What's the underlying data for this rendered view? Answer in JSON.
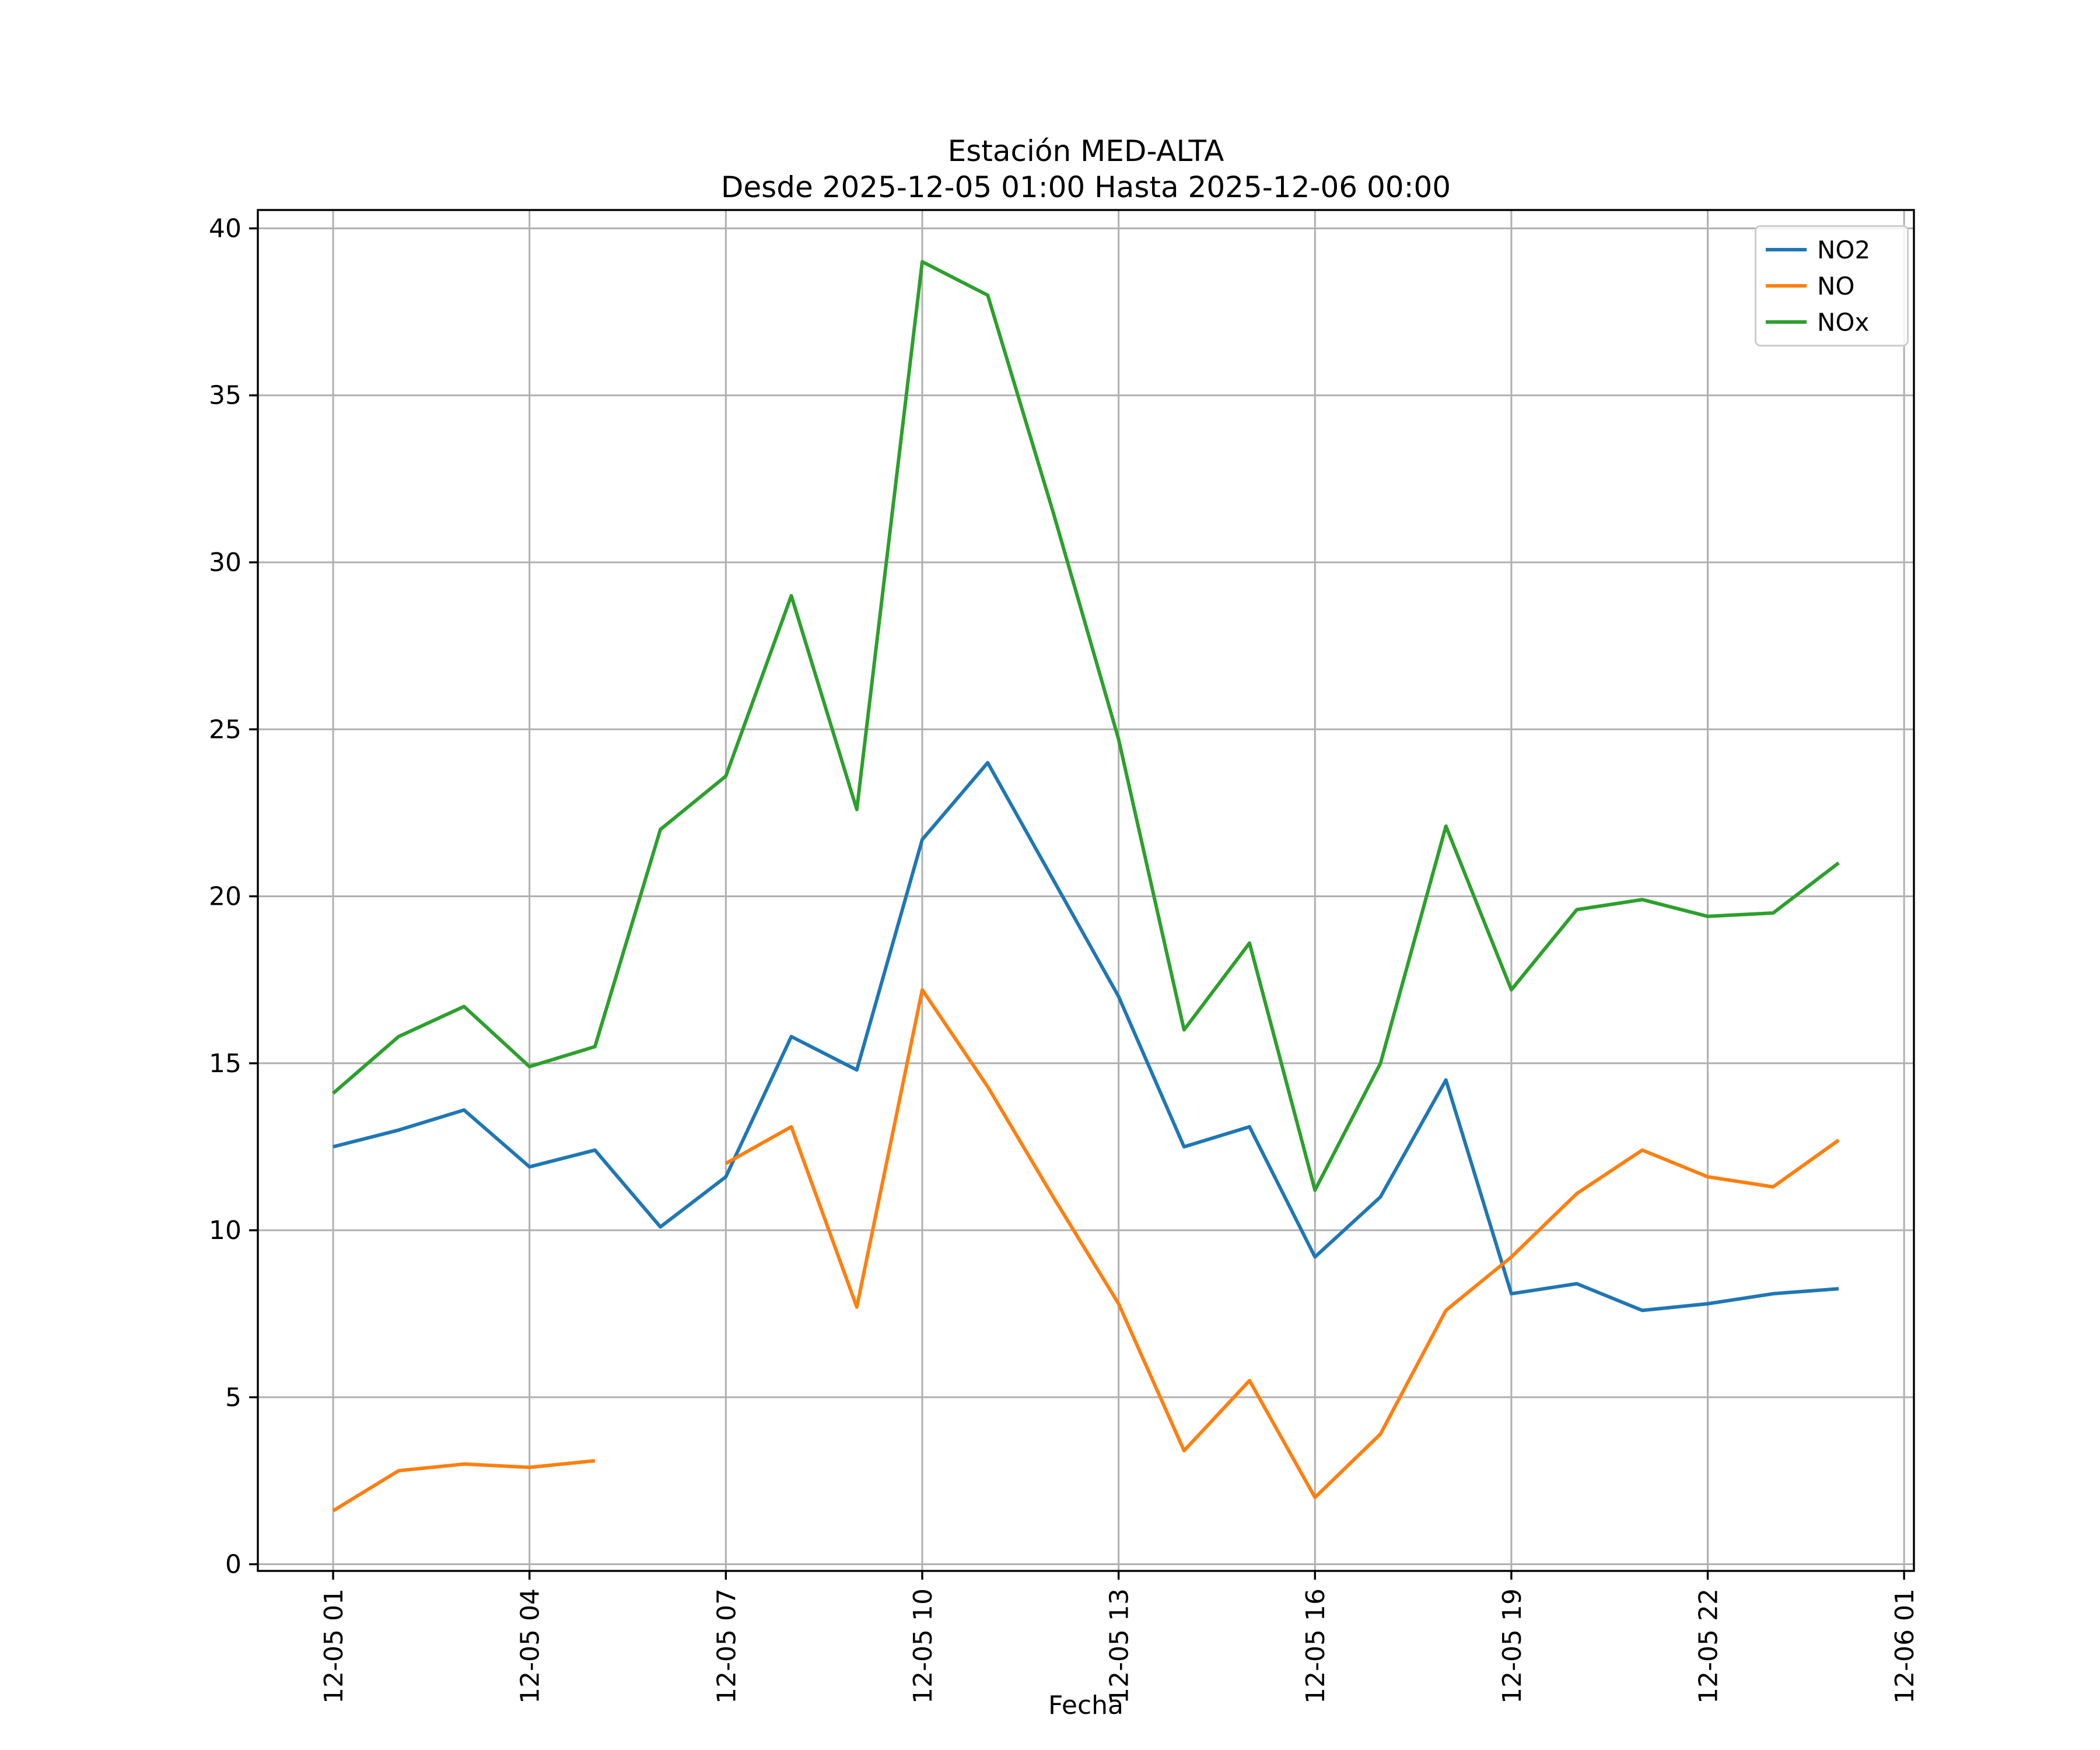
{
  "figure": {
    "background": "#ffffff"
  },
  "chart_data": {
    "type": "line",
    "title": "Estación MED-ALTA",
    "subtitle": "Desde 2025-12-05 01:00 Hasta 2025-12-06 00:00",
    "xlabel": "Fecha",
    "ylabel": "",
    "grid": true,
    "legend_position": "top-right",
    "xlim": [
      -0.15,
      25.15
    ],
    "ylim": [
      -0.2,
      40.55
    ],
    "y_ticks": [
      0,
      5,
      10,
      15,
      20,
      25,
      30,
      35,
      40
    ],
    "x_tick_hours": [
      1,
      4,
      7,
      10,
      13,
      16,
      19,
      22,
      25
    ],
    "x_tick_labels": [
      "12-05 01",
      "12-05 04",
      "12-05 07",
      "12-05 10",
      "12-05 13",
      "12-05 16",
      "12-05 19",
      "12-05 22",
      "12-06 01"
    ],
    "x_hours": [
      1,
      2,
      3,
      4,
      5,
      6,
      7,
      8,
      9,
      10,
      11,
      12,
      13,
      14,
      15,
      16,
      17,
      18,
      19,
      20,
      21,
      22,
      23,
      24
    ],
    "series": [
      {
        "name": "NO2",
        "color": "#1f77b4",
        "values": [
          12.5,
          13.0,
          13.6,
          11.9,
          12.4,
          10.1,
          11.6,
          15.8,
          14.8,
          21.7,
          24.0,
          20.5,
          17.0,
          12.5,
          13.1,
          9.2,
          11.0,
          14.5,
          8.1,
          8.4,
          7.6,
          7.8,
          8.1,
          8.25
        ]
      },
      {
        "name": "NO",
        "color": "#ff7f0e",
        "values": [
          1.6,
          2.8,
          3.0,
          2.9,
          3.1,
          null,
          12.0,
          13.1,
          7.7,
          17.2,
          14.3,
          11.0,
          7.8,
          3.4,
          5.5,
          2.0,
          3.9,
          7.6,
          9.2,
          11.1,
          12.4,
          11.6,
          11.3,
          12.7
        ]
      },
      {
        "name": "NOx",
        "color": "#2ca02c",
        "values": [
          14.1,
          15.8,
          16.7,
          14.9,
          15.5,
          22.0,
          23.6,
          29.0,
          22.6,
          39.0,
          38.0,
          31.5,
          24.7,
          16.0,
          18.6,
          11.2,
          15.0,
          22.1,
          17.2,
          19.6,
          19.9,
          19.4,
          19.5,
          21.0
        ]
      }
    ]
  },
  "colors": {
    "grid": "#b0b0b0",
    "axis": "#000000",
    "legend_border": "#cccccc",
    "background": "#ffffff"
  }
}
